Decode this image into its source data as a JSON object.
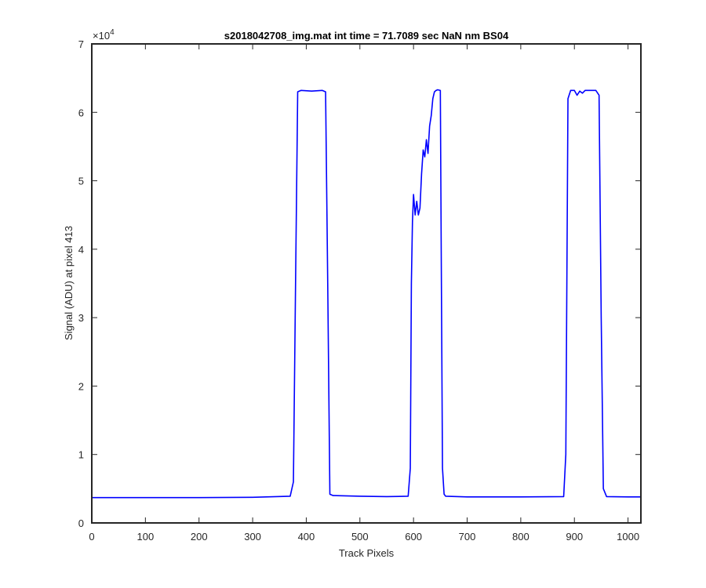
{
  "chart_data": {
    "type": "line",
    "title": "s2018042708_img.mat int time = 71.7089 sec  NaN nm BS04",
    "xlabel": "Track Pixels",
    "ylabel": "Signal (ADU) at pixel 413",
    "xlim": [
      0,
      1024
    ],
    "ylim": [
      0,
      70000
    ],
    "x_ticks": [
      0,
      100,
      200,
      300,
      400,
      500,
      600,
      700,
      800,
      900,
      1000
    ],
    "y_ticks": [
      0,
      1,
      2,
      3,
      4,
      5,
      6,
      7
    ],
    "y_exponent_base": "×10",
    "y_exponent_power": "4",
    "grid": false,
    "line_color": "#0000ff",
    "series": [
      {
        "x": [
          0,
          100,
          200,
          300,
          370,
          376,
          380,
          384,
          390,
          410,
          430,
          436,
          440,
          444,
          450,
          500,
          550,
          590,
          594,
          596,
          598,
          600,
          603,
          606,
          609,
          612,
          615,
          618,
          621,
          624,
          627,
          630,
          633,
          636,
          639,
          642,
          645,
          650,
          652,
          654,
          657,
          660,
          700,
          800,
          880,
          884,
          888,
          893,
          900,
          905,
          910,
          915,
          920,
          930,
          940,
          946,
          950,
          954,
          960,
          1000,
          1024
        ],
        "y": [
          3700,
          3700,
          3700,
          3750,
          3900,
          6000,
          35000,
          63000,
          63200,
          63100,
          63200,
          63000,
          35000,
          4200,
          4000,
          3900,
          3850,
          3900,
          8000,
          35000,
          44000,
          48000,
          45000,
          47000,
          45000,
          46000,
          51000,
          54500,
          53500,
          56000,
          54000,
          58000,
          59500,
          62000,
          63000,
          63200,
          63300,
          63200,
          35000,
          8000,
          4200,
          3900,
          3800,
          3800,
          3850,
          10000,
          62000,
          63200,
          63200,
          62500,
          63100,
          62800,
          63200,
          63200,
          63200,
          62500,
          30000,
          5000,
          3850,
          3800,
          3800
        ]
      }
    ]
  }
}
